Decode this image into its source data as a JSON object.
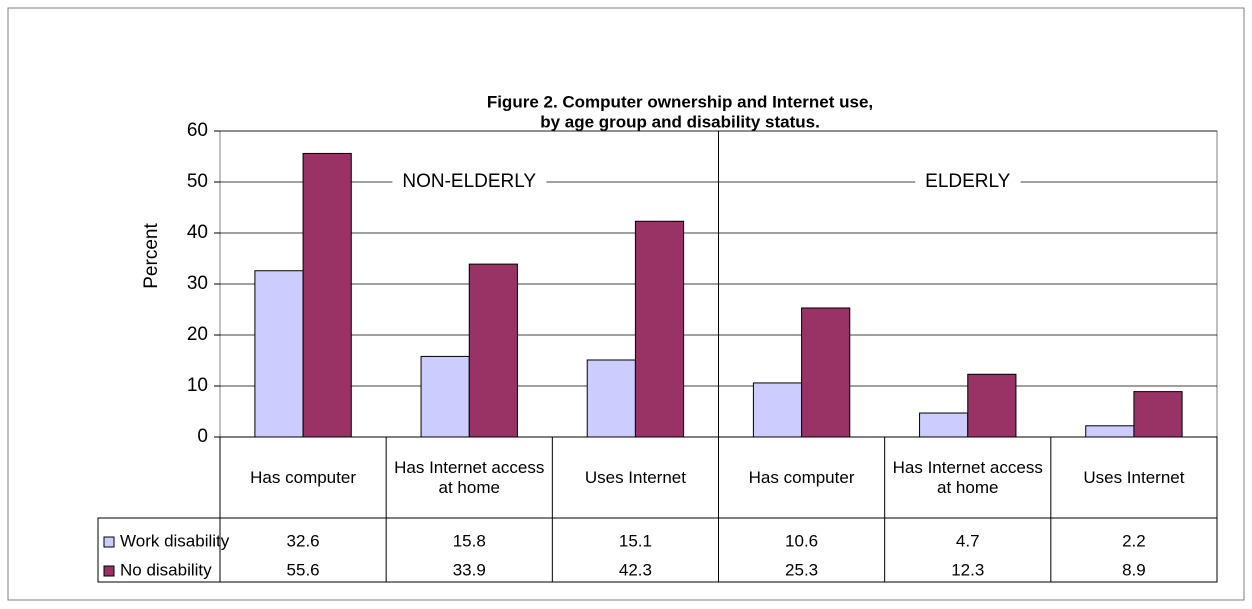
{
  "chart_data": {
    "type": "bar",
    "title": [
      "Figure 2.  Computer ownership and Internet use,",
      "by age group and disability status."
    ],
    "y_label": "Percent",
    "group_labels": [
      "NON-ELDERLY",
      "ELDERLY"
    ],
    "categories": [
      "Has computer",
      "Has Internet access at home",
      "Uses Internet",
      "Has computer",
      "Has Internet access at home",
      "Uses Internet"
    ],
    "series": [
      {
        "name": "Work disability",
        "color": "#ccccff",
        "values": [
          32.6,
          15.8,
          15.1,
          10.6,
          4.7,
          2.2
        ]
      },
      {
        "name": "No disability",
        "color": "#993366",
        "values": [
          55.6,
          33.9,
          42.3,
          25.3,
          12.3,
          8.9
        ]
      }
    ],
    "ylim": [
      0,
      60
    ],
    "yticks": [
      0,
      10,
      20,
      30,
      40,
      50,
      60
    ],
    "grid": true
  }
}
